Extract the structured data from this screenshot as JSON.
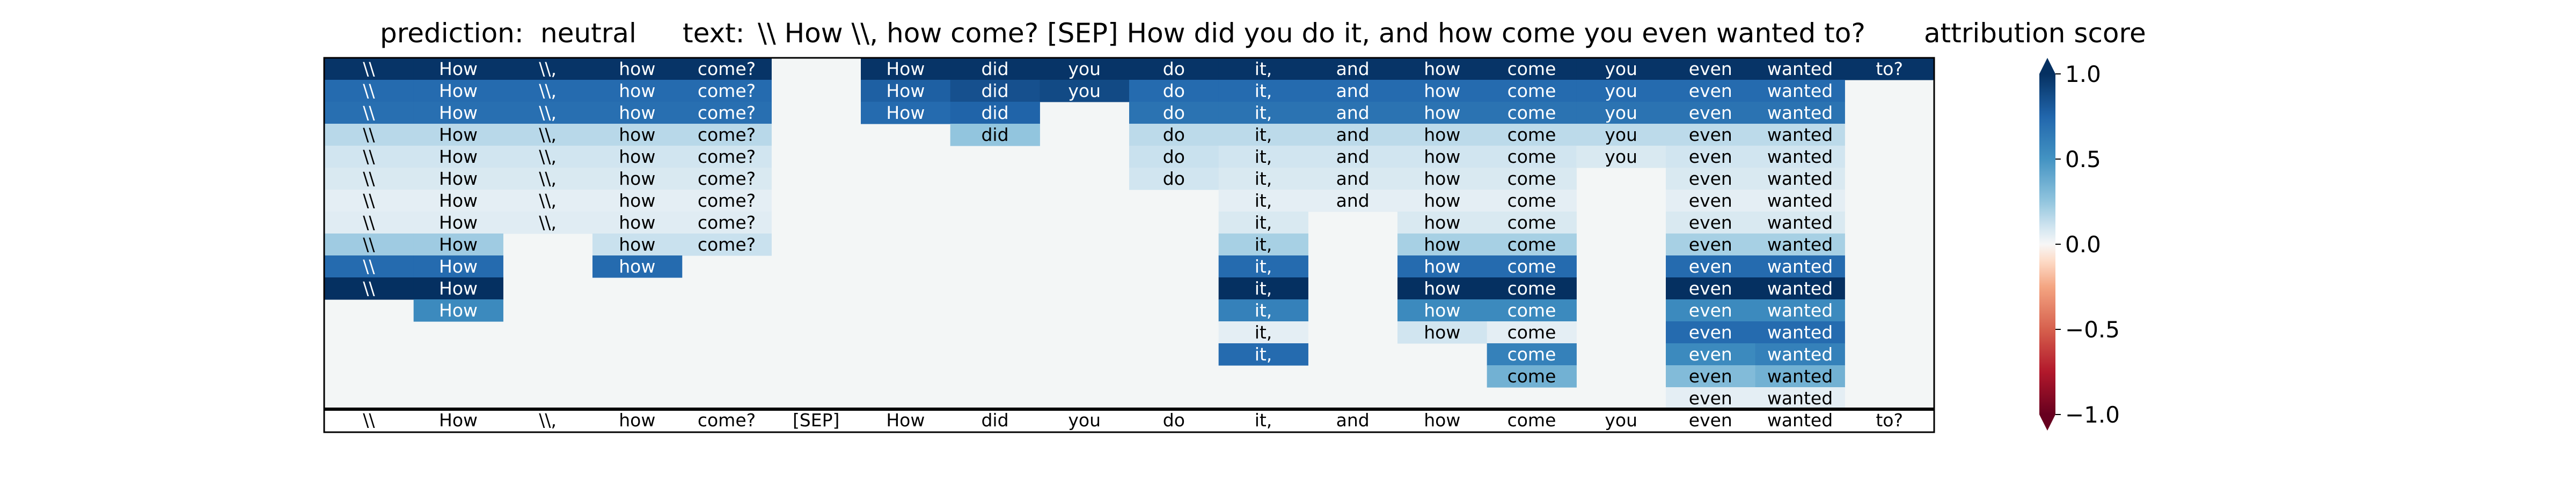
{
  "header": {
    "prediction_label": "prediction:",
    "prediction_value": "neutral",
    "text_label": "text:",
    "text_value": "\\\\ How \\\\, how come? [SEP] How did you do it, and how come you even wanted to?",
    "colorbar_title": "attribution score"
  },
  "chart_data": {
    "type": "heatmap",
    "tokens": [
      "\\\\",
      "How",
      "\\\\,",
      "how",
      "come?",
      "[SEP]",
      "How",
      "did",
      "you",
      "do",
      "it,",
      "and",
      "how",
      "come",
      "you",
      "even",
      "wanted",
      "to?"
    ],
    "colorbar": {
      "min": -1.0,
      "max": 1.0,
      "ticks": [
        1.0,
        0.5,
        0.0,
        -0.5,
        -1.0
      ],
      "tick_labels": [
        "1.0",
        "0.5",
        "0.0",
        "−0.5",
        "−1.0"
      ]
    },
    "rows": [
      [
        0.98,
        0.98,
        0.98,
        0.98,
        0.98,
        null,
        0.98,
        0.98,
        0.98,
        0.98,
        0.98,
        0.98,
        0.98,
        0.98,
        0.98,
        0.98,
        0.98,
        0.98
      ],
      [
        0.72,
        0.72,
        0.72,
        0.72,
        0.72,
        null,
        0.78,
        0.85,
        0.88,
        0.72,
        0.72,
        0.72,
        0.72,
        0.72,
        0.72,
        0.72,
        0.72,
        null
      ],
      [
        0.7,
        0.7,
        0.7,
        0.7,
        0.7,
        null,
        0.72,
        0.76,
        null,
        0.68,
        0.68,
        0.68,
        0.68,
        0.68,
        0.68,
        0.68,
        0.68,
        null
      ],
      [
        0.16,
        0.16,
        0.16,
        0.16,
        0.16,
        null,
        null,
        0.25,
        null,
        0.15,
        0.15,
        0.15,
        0.15,
        0.15,
        0.15,
        0.15,
        0.15,
        null
      ],
      [
        0.1,
        0.1,
        0.1,
        0.1,
        0.1,
        null,
        null,
        null,
        null,
        0.12,
        0.1,
        0.1,
        0.1,
        0.1,
        0.08,
        0.1,
        0.1,
        null
      ],
      [
        0.08,
        0.08,
        0.08,
        0.08,
        0.08,
        null,
        null,
        null,
        null,
        0.1,
        0.08,
        0.08,
        0.08,
        0.08,
        null,
        0.08,
        0.08,
        null
      ],
      [
        0.05,
        0.05,
        0.05,
        0.05,
        0.05,
        null,
        null,
        null,
        null,
        null,
        0.05,
        0.05,
        0.05,
        0.05,
        null,
        0.05,
        0.05,
        null
      ],
      [
        0.06,
        0.06,
        0.06,
        0.06,
        0.06,
        null,
        null,
        null,
        null,
        null,
        0.08,
        null,
        0.08,
        0.08,
        null,
        0.08,
        0.08,
        null
      ],
      [
        0.22,
        0.22,
        null,
        0.12,
        0.12,
        null,
        null,
        null,
        null,
        null,
        0.2,
        null,
        0.2,
        0.2,
        null,
        0.2,
        0.2,
        null
      ],
      [
        0.72,
        0.72,
        null,
        0.72,
        null,
        null,
        null,
        null,
        null,
        null,
        0.72,
        null,
        0.72,
        0.72,
        null,
        0.72,
        0.72,
        null
      ],
      [
        1.0,
        1.0,
        null,
        null,
        null,
        null,
        null,
        null,
        null,
        null,
        1.0,
        null,
        1.0,
        1.0,
        null,
        1.0,
        1.0,
        null
      ],
      [
        null,
        0.55,
        null,
        null,
        null,
        null,
        null,
        null,
        null,
        null,
        0.6,
        null,
        0.55,
        0.55,
        null,
        0.55,
        0.55,
        null
      ],
      [
        null,
        null,
        null,
        null,
        null,
        null,
        null,
        null,
        null,
        null,
        0.05,
        null,
        0.1,
        0.05,
        null,
        0.72,
        0.72,
        null
      ],
      [
        null,
        null,
        null,
        null,
        null,
        null,
        null,
        null,
        null,
        null,
        0.72,
        null,
        null,
        0.6,
        null,
        0.55,
        0.6,
        null
      ],
      [
        null,
        null,
        null,
        null,
        null,
        null,
        null,
        null,
        null,
        null,
        null,
        null,
        null,
        0.35,
        null,
        0.3,
        0.35,
        null
      ],
      [
        null,
        null,
        null,
        null,
        null,
        null,
        null,
        null,
        null,
        null,
        null,
        null,
        null,
        null,
        null,
        0.05,
        0.05,
        null
      ]
    ]
  }
}
